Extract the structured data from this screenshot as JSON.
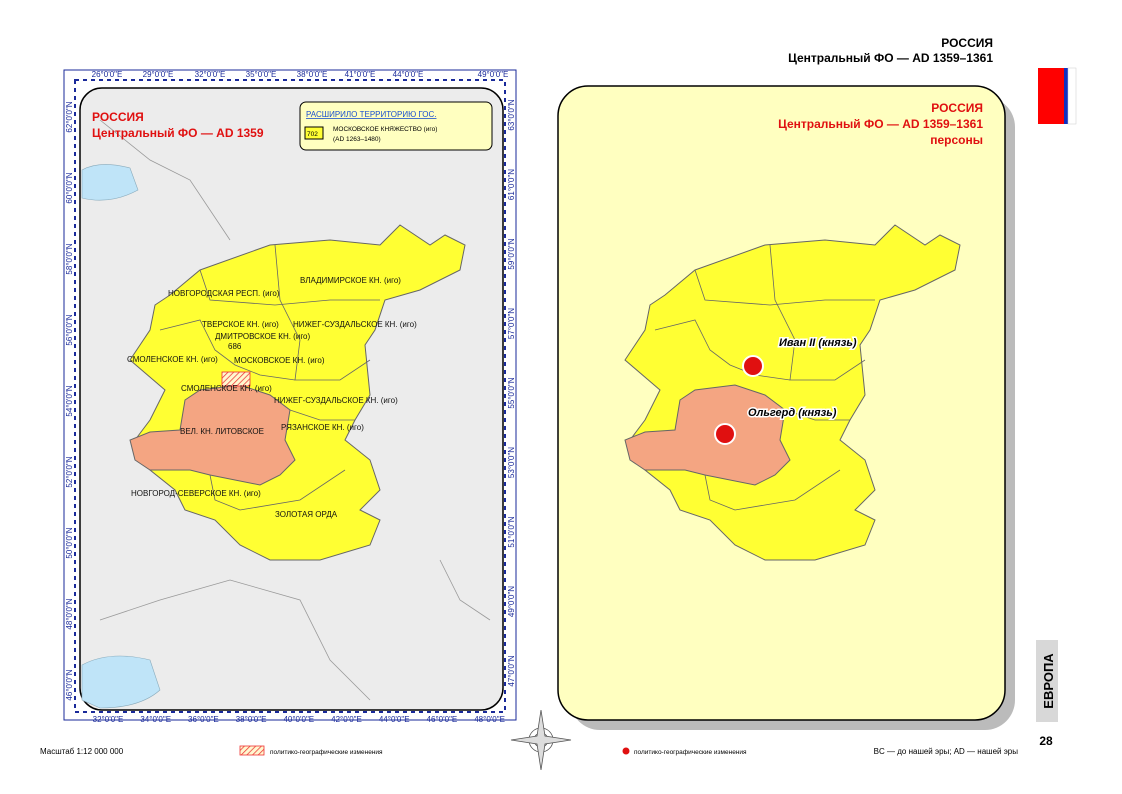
{
  "header": {
    "country": "РОССИЯ",
    "subtitle": "Центральный ФО — AD 1359–1361"
  },
  "left_map": {
    "title": "РОССИЯ",
    "subtitle": "Центральный ФО — AD 1359",
    "legend": {
      "heading": "РАСШИРИЛО ТЕРРИТОРИЮ ГОС.",
      "code": "702",
      "name": "МОСКОВСКОЕ КНЯЖЕСТВО (иго)",
      "period": "(AD 1263–1480)"
    },
    "regions": [
      "ВЛАДИМИРСКОЕ КН. (иго)",
      "НОВГОРОДСКАЯ РЕСП. (иго)",
      "ТВЕРСКОЕ КН. (иго)",
      "НИЖЕГ-СУЗДАЛЬСКОЕ КН. (иго)",
      "ДМИТРОВСКОЕ КН. (иго)",
      "686",
      "СМОЛЕНСКОЕ КН. (иго)",
      "МОСКОВСКОЕ КН. (иго)",
      "СМОЛЕНСКОЕ КН. (иго)",
      "НИЖЕГ-СУЗДАЛЬСКОЕ КН. (иго)",
      "ВЕЛ. КН. ЛИТОВСКОЕ",
      "РЯЗАНСКОЕ КН. (иго)",
      "НОВГОРОД-СЕВЕРСКОЕ КН. (иго)",
      "ЗОЛОТАЯ ОРДА"
    ],
    "top_axis": [
      "26°0'0\"E",
      "29°0'0\"E",
      "32°0'0\"E",
      "35°0'0\"E",
      "38°0'0\"E",
      "41°0'0\"E",
      "44°0'0\"E",
      "49°0'0\"E"
    ],
    "bottom_axis": [
      "32°0'0\"E",
      "34°0'0\"E",
      "36°0'0\"E",
      "38°0'0\"E",
      "40°0'0\"E",
      "42°0'0\"E",
      "44°0'0\"E",
      "46°0'0\"E",
      "48°0'0\"E"
    ],
    "left_axis": [
      "62°0'0\"N",
      "60°0'0\"N",
      "58°0'0\"N",
      "56°0'0\"N",
      "54°0'0\"N",
      "52°0'0\"N",
      "50°0'0\"N",
      "48°0'0\"N",
      "46°0'0\"N"
    ],
    "right_axis": [
      "63°0'0\"N",
      "61°0'0\"N",
      "59°0'0\"N",
      "57°0'0\"N",
      "55°0'0\"N",
      "53°0'0\"N",
      "51°0'0\"N",
      "49°0'0\"N",
      "47°0'0\"N"
    ]
  },
  "right_map": {
    "title": "РОССИЯ",
    "subtitle": "Центральный ФО — AD 1359–1361",
    "caption": "персоны",
    "persons": [
      "Иван II (князь)",
      "Ольгерд (князь)"
    ]
  },
  "footer": {
    "scale": "Масштаб 1:12 000 000",
    "left_legend": "политико-географические изменения",
    "right_legend": "политико-географические изменения",
    "era_note": "BC — до нашей эры; AD — нашей эры",
    "section": "ЕВРОПА",
    "page": "28"
  }
}
